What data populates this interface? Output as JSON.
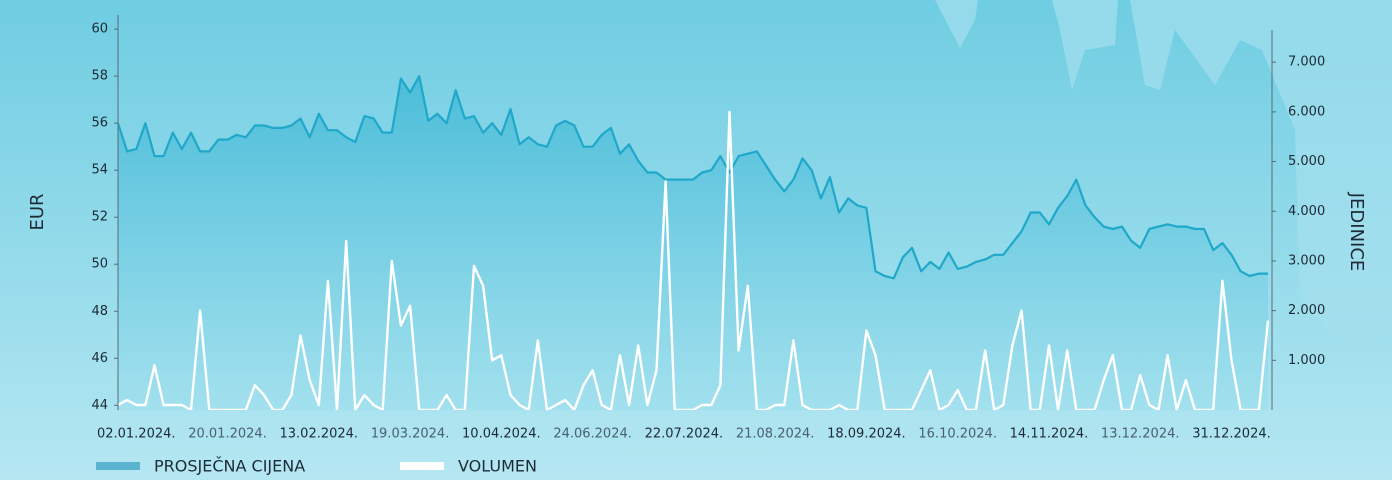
{
  "chart_data": {
    "type": "line",
    "y_label": "EUR",
    "y2_label": "JEDINICE",
    "categories": [
      null,
      null,
      "02.01.2024.",
      null,
      null,
      null,
      null,
      null,
      null,
      null,
      null,
      null,
      "20.01.2024.",
      null,
      null,
      null,
      null,
      null,
      null,
      null,
      null,
      null,
      "13.02.2024.",
      null,
      null,
      null,
      null,
      null,
      null,
      null,
      null,
      null,
      "19.03.2024.",
      null,
      null,
      null,
      null,
      null,
      null,
      null,
      null,
      null,
      "10.04.2024.",
      null,
      null,
      null,
      null,
      null,
      null,
      null,
      null,
      null,
      "24.06.2024.",
      null,
      null,
      null,
      null,
      null,
      null,
      null,
      null,
      null,
      "22.07.2024.",
      null,
      null,
      null,
      null,
      null,
      null,
      null,
      null,
      null,
      "21.08.2024.",
      null,
      null,
      null,
      null,
      null,
      null,
      null,
      null,
      null,
      "18.09.2024.",
      null,
      null,
      null,
      null,
      null,
      null,
      null,
      null,
      null,
      "16.10.2024.",
      null,
      null,
      null,
      null,
      null,
      null,
      null,
      null,
      null,
      "14.11.2024.",
      null,
      null,
      null,
      null,
      null,
      null,
      null,
      null,
      null,
      "13.12.2024.",
      null,
      null,
      null,
      null,
      null,
      null,
      null,
      null,
      null,
      "31.12.2024.",
      null,
      null,
      null,
      null
    ],
    "series": [
      {
        "name": "PROSJEČNA CIJENA",
        "color": "#1fa8ca",
        "values": [
          56.0,
          54.8,
          54.9,
          56.0,
          54.6,
          54.6,
          55.6,
          54.9,
          55.6,
          54.8,
          54.8,
          55.3,
          55.3,
          55.5,
          55.4,
          55.9,
          55.9,
          55.8,
          55.8,
          55.9,
          56.2,
          55.4,
          56.4,
          55.7,
          55.7,
          55.4,
          55.2,
          56.3,
          56.2,
          55.6,
          55.6,
          57.9,
          57.3,
          58.0,
          56.1,
          56.4,
          56.0,
          57.4,
          56.2,
          56.3,
          55.6,
          56.0,
          55.5,
          56.6,
          55.1,
          55.4,
          55.1,
          55.0,
          55.9,
          56.1,
          55.9,
          55.0,
          55.0,
          55.5,
          55.8,
          54.7,
          55.1,
          54.4,
          53.9,
          53.9,
          53.6,
          53.6,
          53.6,
          53.6,
          53.9,
          54.0,
          54.6,
          53.9,
          54.6,
          54.7,
          54.8,
          54.2,
          53.6,
          53.1,
          53.6,
          54.5,
          54.0,
          52.8,
          53.7,
          52.2,
          52.8,
          52.5,
          52.4,
          49.7,
          49.5,
          49.4,
          50.3,
          50.7,
          49.7,
          50.1,
          49.8,
          50.5,
          49.8,
          49.9,
          50.1,
          50.2,
          50.4,
          50.4,
          50.9,
          51.4,
          52.2,
          52.2,
          51.7,
          52.4,
          52.9,
          53.6,
          52.5,
          52.0,
          51.6,
          51.5,
          51.6,
          51.0,
          50.7,
          51.5,
          51.6,
          51.7,
          51.6,
          51.6,
          51.5,
          51.5,
          50.6,
          50.9,
          50.4,
          49.7,
          49.5,
          49.6,
          49.6
        ]
      },
      {
        "name": "VOLUMEN",
        "color": "#ffffff",
        "axis": "y2",
        "values": [
          100,
          200,
          100,
          100,
          900,
          100,
          100,
          100,
          0,
          2000,
          0,
          0,
          0,
          0,
          0,
          500,
          300,
          0,
          0,
          300,
          1500,
          600,
          100,
          2600,
          0,
          3400,
          0,
          300,
          100,
          0,
          3000,
          1700,
          2100,
          0,
          0,
          0,
          300,
          0,
          0,
          2900,
          2500,
          1000,
          1100,
          300,
          100,
          0,
          1400,
          0,
          100,
          200,
          0,
          500,
          800,
          100,
          0,
          1100,
          100,
          1300,
          100,
          800,
          4600,
          0,
          0,
          0,
          100,
          100,
          500,
          6000,
          1200,
          2500,
          0,
          0,
          100,
          100,
          1400,
          100,
          0,
          0,
          0,
          100,
          0,
          0,
          1600,
          1100,
          0,
          0,
          0,
          0,
          400,
          800,
          0,
          100,
          400,
          0,
          0,
          1200,
          0,
          100,
          1300,
          2000,
          0,
          0,
          1300,
          0,
          1200,
          0,
          0,
          0,
          600,
          1100,
          0,
          0,
          700,
          100,
          0,
          1100,
          0,
          600,
          0,
          0,
          0,
          2600,
          1000,
          0,
          0,
          0,
          1800
        ]
      }
    ],
    "ylim": [
      43.8,
      60.6
    ],
    "yticks": [
      44,
      46,
      48,
      50,
      52,
      54,
      56,
      58,
      60
    ],
    "y2lim": [
      0,
      7950
    ],
    "y2ticks": [
      {
        "value": 1000,
        "label": "1.000"
      },
      {
        "value": 2000,
        "label": "2.000"
      },
      {
        "value": 3000,
        "label": "3.000"
      },
      {
        "value": 4000,
        "label": "4.000"
      },
      {
        "value": 5000,
        "label": "5.000"
      },
      {
        "value": 6000,
        "label": "6.000"
      },
      {
        "value": 7000,
        "label": "7.000"
      }
    ],
    "grid": false,
    "legend": "bottom-left"
  }
}
